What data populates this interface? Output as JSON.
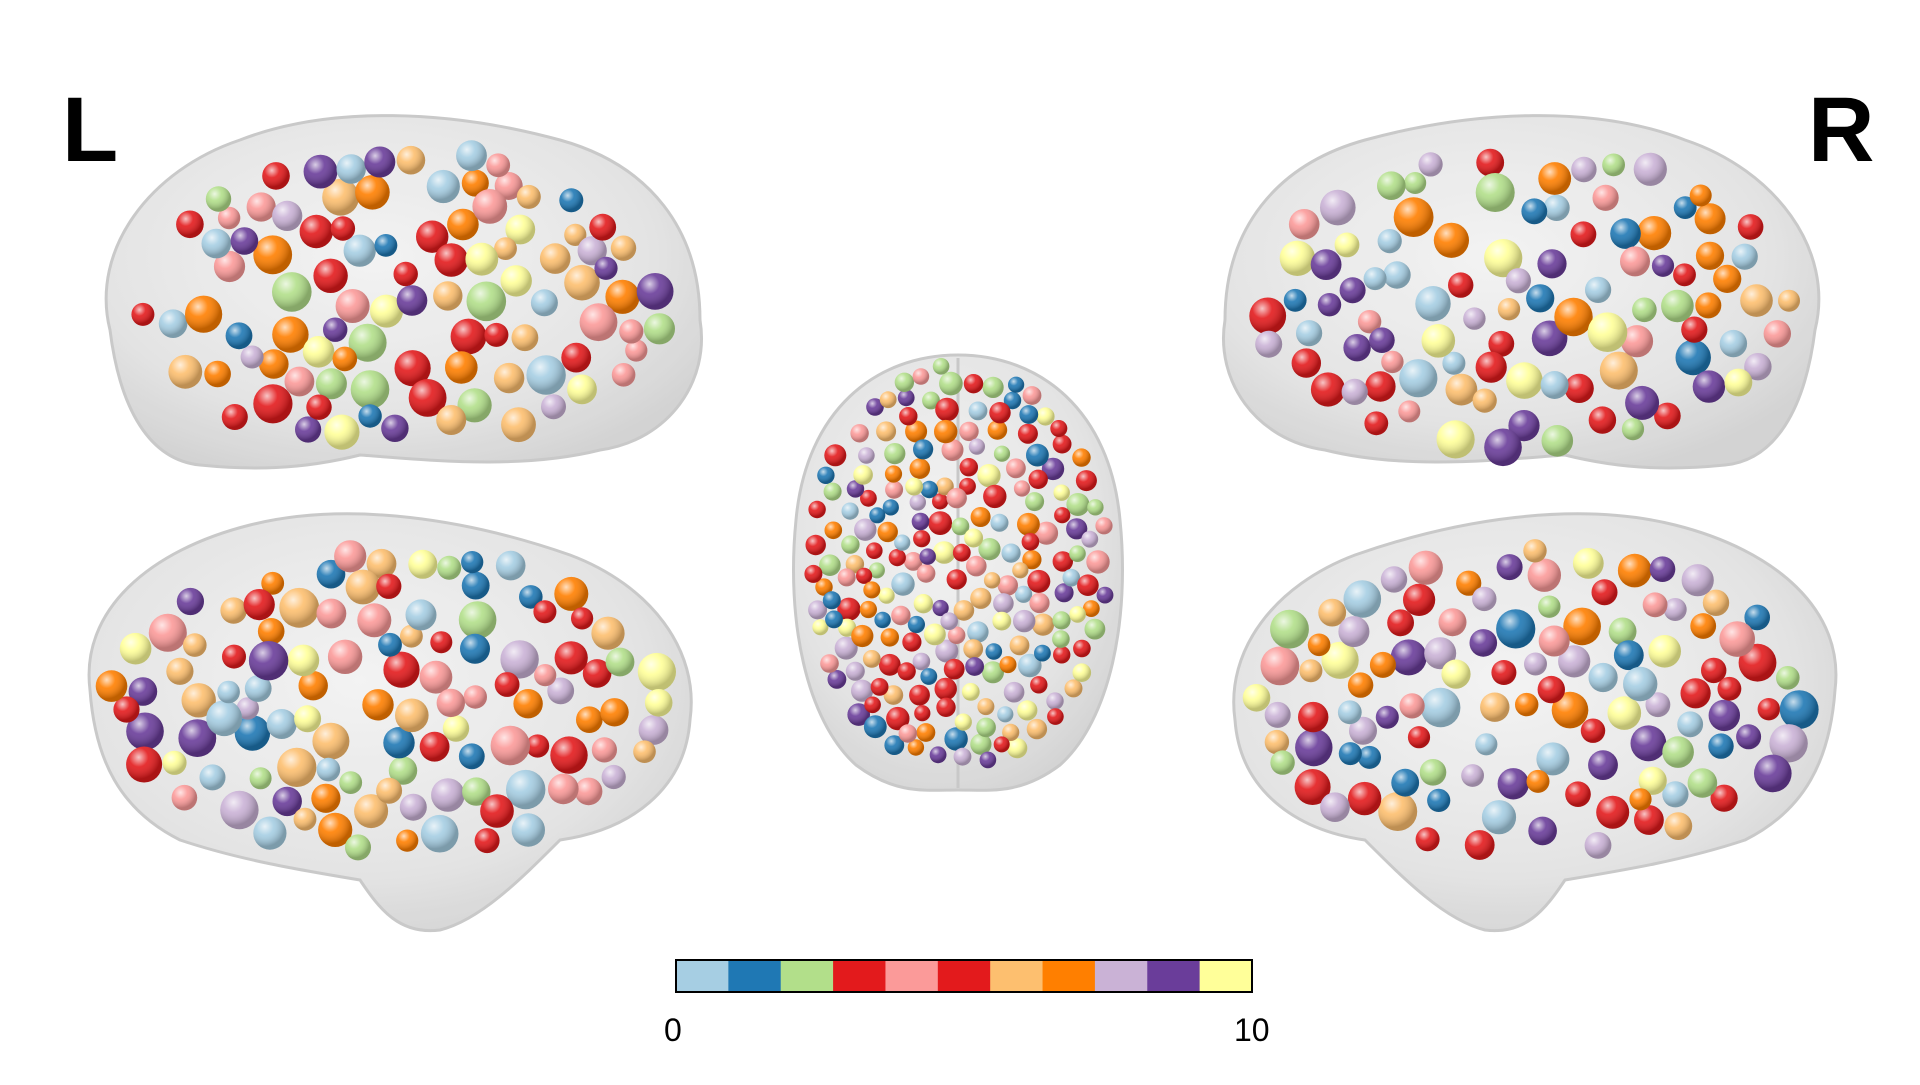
{
  "labels": {
    "left": "L",
    "right": "R"
  },
  "colorbar": {
    "min_label": "0",
    "max_label": "10",
    "range": [
      0,
      10
    ],
    "colors": [
      "#a6cee3",
      "#1f78b4",
      "#b2df8a",
      "#e31a1c",
      "#fb9a99",
      "#e31a1c",
      "#fdbf6f",
      "#ff7f00",
      "#cab2d6",
      "#6a3d9a",
      "#ffff99"
    ]
  },
  "views": [
    {
      "name": "left-lateral-view"
    },
    {
      "name": "left-medial-view"
    },
    {
      "name": "axial-view"
    },
    {
      "name": "right-lateral-view"
    },
    {
      "name": "right-medial-view"
    }
  ]
}
